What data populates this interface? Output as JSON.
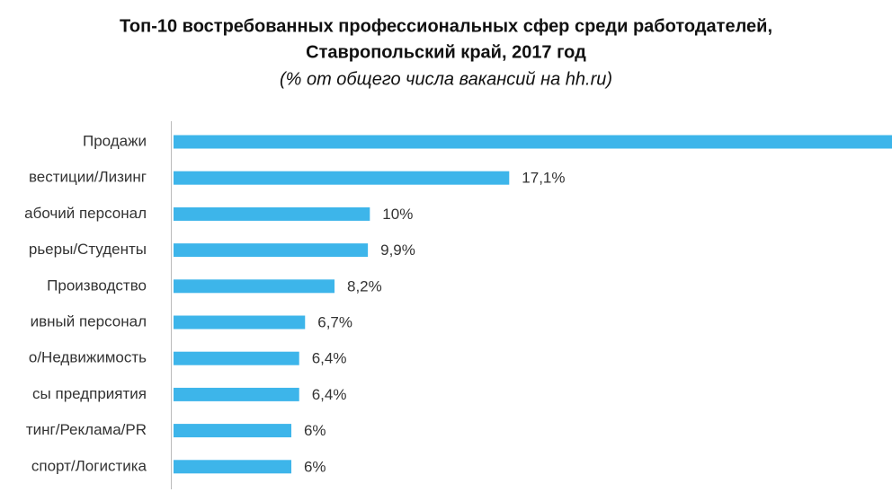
{
  "chart_data": {
    "type": "bar",
    "orientation": "horizontal",
    "title": [
      "Топ-10 востребованных профессиональных сфер среди работодателей,",
      "Ставропольский край, 2017 год"
    ],
    "subtitle": "(% от общего числа вакансий на hh.ru)",
    "categories": [
      "Продажи",
      "вестиции/Лизинг",
      "абочий персонал",
      "рьеры/Студенты",
      "Производство",
      "ивный персонал",
      "о/Недвижимость",
      "сы предприятия",
      "тинг/Реклама/PR",
      "спорт/Логистика"
    ],
    "values": [
      37,
      17.1,
      10,
      9.9,
      8.2,
      6.7,
      6.4,
      6.4,
      6,
      6
    ],
    "value_labels": [
      null,
      "17,1%",
      "10%",
      "9,9%",
      "8,2%",
      "6,7%",
      "6,4%",
      "6,4%",
      "6%",
      "6%"
    ],
    "color": "#3db5ea",
    "xlim": [
      0,
      36.6
    ]
  }
}
